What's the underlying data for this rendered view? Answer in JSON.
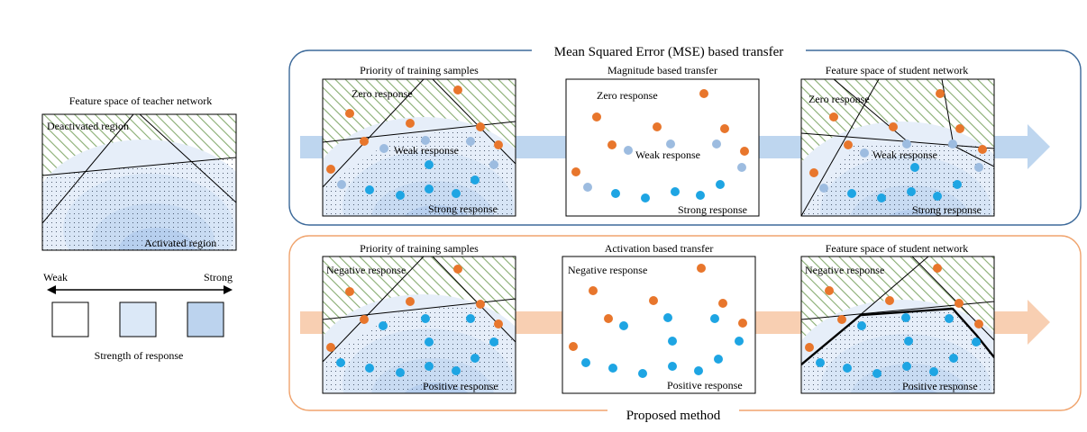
{
  "teacher": {
    "title": "Feature space of teacher network",
    "deactivated_label": "Deactivated region",
    "activated_label": "Activated region"
  },
  "legend": {
    "weak_label": "Weak",
    "strong_label": "Strong",
    "caption": "Strength of response",
    "swatch_colors": [
      "#ffffff",
      "#dbe8f7",
      "#bcd3ee"
    ]
  },
  "mse": {
    "group_title": "Mean Squared Error (MSE) based transfer",
    "panel1": {
      "title": "Priority of training samples",
      "zero": "Zero response",
      "weak": "Weak response",
      "strong": "Strong response"
    },
    "panel2": {
      "title": "Magnitude based transfer",
      "zero": "Zero response",
      "weak": "Weak response",
      "strong": "Strong response"
    },
    "panel3": {
      "title": "Feature space of student network",
      "zero": "Zero response",
      "weak": "Weak response",
      "strong": "Strong response"
    }
  },
  "proposed": {
    "group_title": "Proposed method",
    "panel1": {
      "title": "Priority of training samples",
      "negative": "Negative response",
      "positive": "Positive response"
    },
    "panel2": {
      "title": "Activation based transfer",
      "negative": "Negative response",
      "positive": "Positive response"
    },
    "panel3": {
      "title": "Feature space of student network",
      "negative": "Negative response",
      "positive": "Positive response"
    }
  },
  "colors": {
    "orange_dot": "#e8762c",
    "blue_dot": "#1ea5e3",
    "light_blue_dot": "#9dbce0",
    "mse_border": "#3d6a9a",
    "proposed_border": "#f0a46e",
    "mse_arrow": "#bed6ef",
    "proposed_arrow": "#f8cfb2",
    "hatch_green": "#88ad72"
  }
}
